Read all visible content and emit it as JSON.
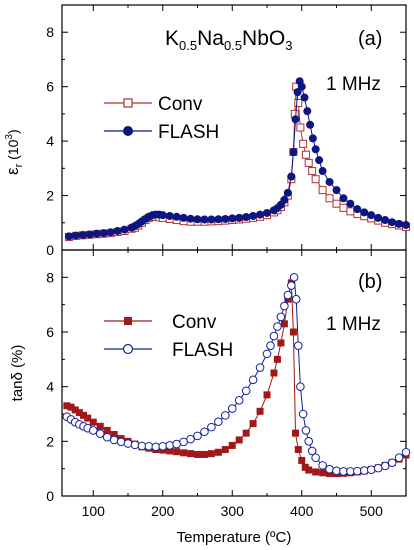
{
  "chart_data": [
    {
      "type": "scatter",
      "panel_label": "(a)",
      "annotation": "1 MHz",
      "compound": {
        "base1": "K",
        "sub1": "0.5",
        "base2": "Na",
        "sub2": "0.5",
        "base3": "NbO",
        "sub3": "3"
      },
      "ylabel": {
        "main": "ε",
        "sub": "r",
        "unit_open": " (10",
        "unit_sup": "3",
        "unit_close": ")"
      },
      "xlim": [
        55,
        550
      ],
      "ylim": [
        0,
        9
      ],
      "yticks": [
        "0",
        "2",
        "4",
        "6",
        "8"
      ],
      "series": [
        {
          "name": "Conv",
          "color": "#b03030",
          "marker": "open-square",
          "x": [
            65,
            75,
            85,
            95,
            105,
            115,
            125,
            135,
            145,
            155,
            160,
            165,
            170,
            175,
            180,
            185,
            190,
            195,
            200,
            210,
            220,
            230,
            240,
            250,
            260,
            270,
            280,
            290,
            300,
            310,
            320,
            330,
            340,
            350,
            360,
            365,
            370,
            375,
            380,
            385,
            388,
            390,
            392,
            395,
            398,
            402,
            406,
            410,
            415,
            420,
            430,
            440,
            450,
            460,
            470,
            480,
            490,
            500,
            510,
            520,
            530,
            540,
            550
          ],
          "y": [
            0.48,
            0.52,
            0.54,
            0.56,
            0.58,
            0.6,
            0.62,
            0.66,
            0.7,
            0.78,
            0.82,
            0.9,
            1.0,
            1.1,
            1.18,
            1.22,
            1.22,
            1.2,
            1.18,
            1.14,
            1.1,
            1.06,
            1.04,
            1.04,
            1.04,
            1.05,
            1.06,
            1.08,
            1.1,
            1.12,
            1.15,
            1.18,
            1.22,
            1.28,
            1.38,
            1.46,
            1.58,
            1.75,
            2.0,
            2.6,
            3.6,
            5.0,
            6.0,
            5.4,
            4.5,
            3.9,
            3.5,
            3.2,
            2.9,
            2.6,
            2.2,
            1.9,
            1.7,
            1.55,
            1.42,
            1.32,
            1.24,
            1.16,
            1.08,
            1.0,
            0.95,
            0.9,
            0.85
          ]
        },
        {
          "name": "FLASH",
          "color": "#0d1580",
          "marker": "filled-circle",
          "x": [
            65,
            75,
            85,
            95,
            105,
            115,
            125,
            135,
            145,
            155,
            160,
            165,
            170,
            175,
            180,
            185,
            190,
            195,
            200,
            210,
            220,
            230,
            240,
            250,
            260,
            270,
            280,
            290,
            300,
            310,
            320,
            330,
            340,
            350,
            360,
            365,
            370,
            375,
            380,
            385,
            388,
            391,
            394,
            397,
            400,
            404,
            408,
            412,
            416,
            420,
            425,
            430,
            440,
            450,
            460,
            470,
            480,
            490,
            500,
            510,
            520,
            530,
            540,
            550
          ],
          "y": [
            0.5,
            0.53,
            0.55,
            0.57,
            0.6,
            0.62,
            0.65,
            0.7,
            0.75,
            0.82,
            0.88,
            0.96,
            1.05,
            1.14,
            1.22,
            1.28,
            1.3,
            1.3,
            1.28,
            1.25,
            1.22,
            1.18,
            1.15,
            1.13,
            1.12,
            1.12,
            1.13,
            1.14,
            1.16,
            1.18,
            1.21,
            1.25,
            1.3,
            1.36,
            1.46,
            1.54,
            1.66,
            1.84,
            2.1,
            2.7,
            3.6,
            4.8,
            5.8,
            6.2,
            6.0,
            5.6,
            5.1,
            4.6,
            4.1,
            3.7,
            3.3,
            2.9,
            2.5,
            2.2,
            1.9,
            1.7,
            1.5,
            1.38,
            1.28,
            1.18,
            1.1,
            1.02,
            0.96,
            0.92
          ]
        }
      ]
    },
    {
      "type": "scatter",
      "panel_label": "(b)",
      "annotation": "1 MHz",
      "ylabel": "tanδ (%)",
      "xlabel": "Temperature (ºC)",
      "xlim": [
        55,
        550
      ],
      "ylim": [
        0,
        9
      ],
      "xticks": [
        "100",
        "200",
        "300",
        "400",
        "500"
      ],
      "yticks": [
        "0",
        "2",
        "4",
        "6",
        "8"
      ],
      "series": [
        {
          "name": "Conv",
          "color": "#a01818",
          "marker": "filled-square",
          "x": [
            62,
            68,
            74,
            80,
            86,
            92,
            100,
            110,
            120,
            130,
            140,
            150,
            160,
            170,
            180,
            190,
            200,
            210,
            220,
            230,
            240,
            250,
            260,
            270,
            280,
            290,
            300,
            310,
            320,
            330,
            340,
            350,
            360,
            365,
            370,
            375,
            380,
            385,
            388,
            391,
            395,
            400,
            405,
            410,
            420,
            430,
            440,
            450,
            460,
            470,
            480,
            490,
            500,
            510,
            520,
            530,
            540,
            550
          ],
          "y": [
            3.3,
            3.25,
            3.15,
            3.05,
            2.95,
            2.85,
            2.7,
            2.55,
            2.4,
            2.25,
            2.1,
            2.0,
            1.9,
            1.8,
            1.75,
            1.7,
            1.68,
            1.65,
            1.62,
            1.58,
            1.55,
            1.52,
            1.52,
            1.55,
            1.6,
            1.7,
            1.85,
            2.05,
            2.3,
            2.65,
            3.1,
            3.7,
            4.5,
            5.0,
            5.6,
            6.3,
            7.2,
            7.8,
            6.0,
            2.3,
            1.7,
            1.3,
            1.05,
            0.95,
            0.88,
            0.85,
            0.82,
            0.82,
            0.83,
            0.85,
            0.88,
            0.92,
            0.97,
            1.03,
            1.12,
            1.22,
            1.35,
            1.5
          ]
        },
        {
          "name": "FLASH",
          "color": "#16209a",
          "marker": "open-circle",
          "x": [
            62,
            68,
            74,
            80,
            86,
            92,
            100,
            110,
            120,
            130,
            140,
            150,
            160,
            170,
            180,
            190,
            200,
            210,
            220,
            230,
            240,
            250,
            260,
            270,
            280,
            290,
            300,
            310,
            320,
            330,
            340,
            350,
            355,
            360,
            365,
            370,
            375,
            380,
            385,
            389,
            392,
            395,
            398,
            402,
            406,
            410,
            415,
            420,
            430,
            440,
            450,
            460,
            470,
            480,
            490,
            500,
            510,
            520,
            530,
            540,
            550
          ],
          "y": [
            2.9,
            2.8,
            2.7,
            2.62,
            2.55,
            2.48,
            2.4,
            2.28,
            2.15,
            2.05,
            1.98,
            1.92,
            1.87,
            1.83,
            1.82,
            1.8,
            1.82,
            1.85,
            1.9,
            1.98,
            2.08,
            2.2,
            2.35,
            2.52,
            2.72,
            2.95,
            3.2,
            3.5,
            3.85,
            4.25,
            4.7,
            5.2,
            5.5,
            5.85,
            6.2,
            6.55,
            6.95,
            7.35,
            7.7,
            8.0,
            7.2,
            5.5,
            4.0,
            3.0,
            2.4,
            2.0,
            1.65,
            1.4,
            1.12,
            0.98,
            0.92,
            0.9,
            0.9,
            0.91,
            0.93,
            0.96,
            1.02,
            1.1,
            1.22,
            1.4,
            1.6
          ]
        }
      ]
    }
  ]
}
